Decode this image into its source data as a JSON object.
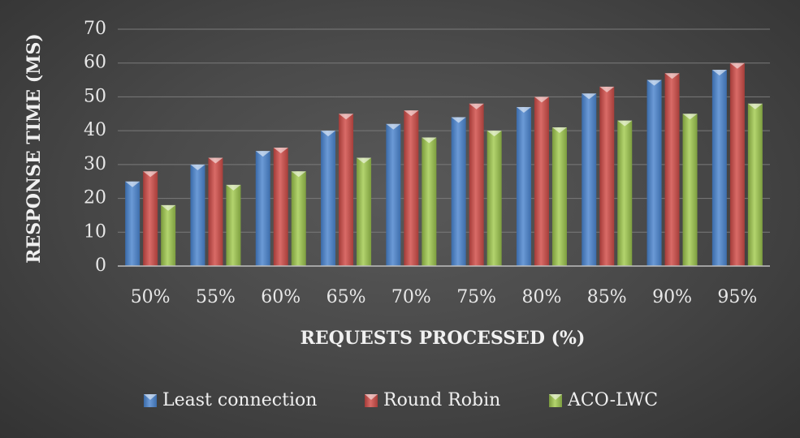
{
  "chart_data": {
    "type": "bar",
    "title": "",
    "xlabel": "REQUESTS PROCESSED (%)",
    "ylabel": "RESPONSE TIME (MS)",
    "ylim": [
      0,
      70
    ],
    "yticks": [
      0,
      10,
      20,
      30,
      40,
      50,
      60,
      70
    ],
    "grid": true,
    "legend_position": "bottom",
    "categories": [
      "50%",
      "55%",
      "60%",
      "65%",
      "70%",
      "75%",
      "80%",
      "85%",
      "90%",
      "95%"
    ],
    "series": [
      {
        "name": "Least connection",
        "color": "#4f81bd",
        "values": [
          25,
          30,
          34,
          40,
          42,
          44,
          47,
          51,
          55,
          58
        ]
      },
      {
        "name": "Round Robin",
        "color": "#c0504d",
        "values": [
          28,
          32,
          35,
          45,
          46,
          48,
          50,
          53,
          57,
          60
        ]
      },
      {
        "name": "ACO-LWC",
        "color": "#9bbb59",
        "values": [
          18,
          24,
          28,
          32,
          38,
          40,
          41,
          43,
          45,
          48
        ]
      }
    ]
  }
}
